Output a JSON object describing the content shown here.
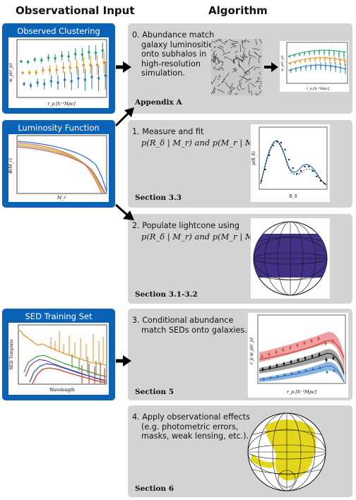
{
  "headers": {
    "left": "Observational Input",
    "right": "Algorithm"
  },
  "inputs": [
    {
      "title": "Observed Clustering",
      "ylabel": "w_p(r_p)",
      "xlabel": "r_p [h⁻¹Mpc]"
    },
    {
      "title": "Luminosity Function",
      "ylabel": "Φ(M_r)",
      "xlabel": "M_r"
    },
    {
      "title": "SED Training Set",
      "ylabel": "SED Template",
      "xlabel": "Wavelength"
    }
  ],
  "steps": [
    {
      "text_lines": [
        "0. Abundance match",
        "galaxy luminosities",
        "onto subhalos in",
        "high-resolution",
        "simulation."
      ],
      "section": "Appendix A",
      "inset_xlabel": "r_p [h⁻¹Mpc]",
      "inset_ylabel": "w_p(r_p)"
    },
    {
      "text_lines": [
        "1. Measure and fit"
      ],
      "math_lines": [
        "p(R_δ | M_r) and p(M_r | M_vir)."
      ],
      "section": "Section 3.3",
      "inset_xlabel": "R_δ",
      "inset_ylabel": "p(R_δ)"
    },
    {
      "text_lines": [
        "2. Populate lightcone using"
      ],
      "math_lines": [
        "p(R_δ | M_r) and p(M_r | M_vir)."
      ],
      "section": "Section 3.1-3.2"
    },
    {
      "text_lines": [
        "3. Conditional abundance",
        "match SEDs onto galaxies."
      ],
      "section": "Section 5",
      "inset_xlabel": "r_p [h⁻¹Mpc]",
      "inset_ylabel": "r_p w_p(r_p)"
    },
    {
      "text_lines": [
        "4. Apply observational effects",
        "(e.g. photometric errors,",
        "masks, weak lensing, etc.)."
      ],
      "section": "Section 6"
    }
  ],
  "colors": {
    "input_box": "#0b63b8",
    "step_box": "#d3d3d3",
    "green": "#1a9a6a",
    "orange": "#f08a1c",
    "blue": "#2e75b6",
    "red": "#d64545"
  }
}
